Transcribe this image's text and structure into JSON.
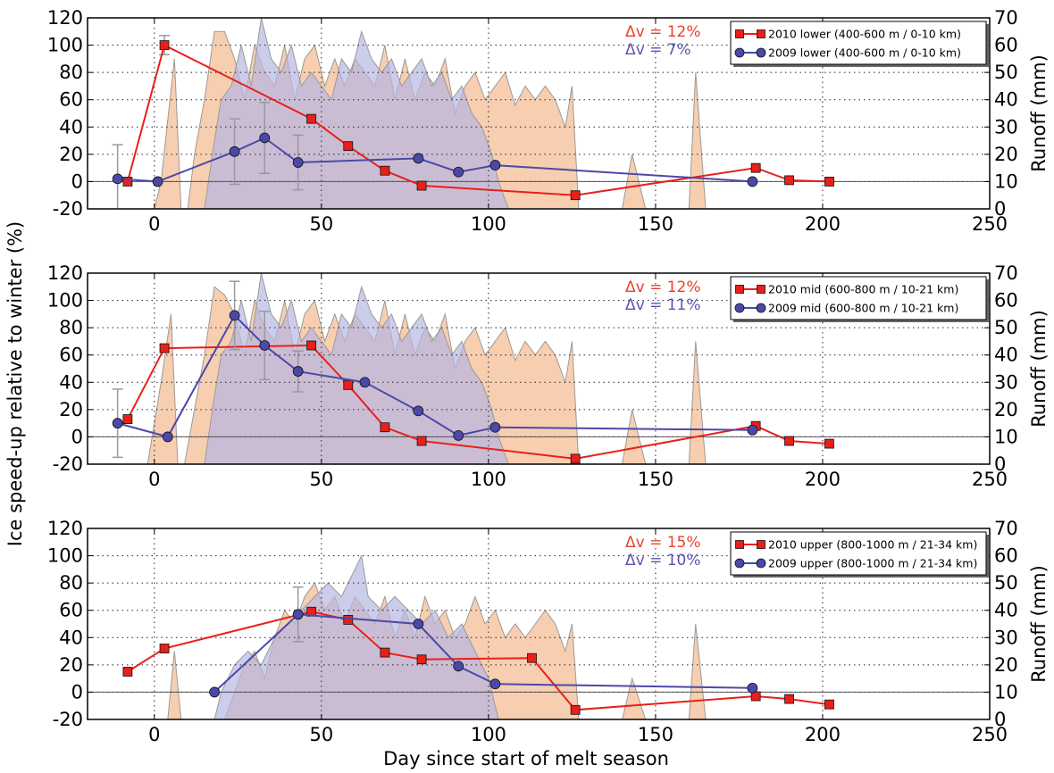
{
  "figure": {
    "xlabel": "Day since start of melt season",
    "ylabel": "Ice speed-up relative to winter (%)",
    "ylabel_right": "Runoff (mm)"
  },
  "colors": {
    "series_2010": "#e8201a",
    "series_2009": "#4b49a8",
    "runoff_2010": "#f4b98f",
    "runoff_2009": "#b7b6e3",
    "dv_2010": "#e8412e",
    "dv_2009": "#5b55b0"
  },
  "chart_data": [
    {
      "type": "line",
      "panel": "lower",
      "xlim": [
        -20,
        250
      ],
      "ylim": [
        -20,
        120
      ],
      "y2lim": [
        0,
        70
      ],
      "xticks": [
        0,
        50,
        100,
        150,
        200,
        250
      ],
      "yticks": [
        -20,
        0,
        20,
        40,
        60,
        80,
        100,
        120
      ],
      "y2ticks": [
        0,
        10,
        20,
        30,
        40,
        50,
        60,
        70
      ],
      "grid": true,
      "legend_position": "top-right",
      "annotations": [
        {
          "text": "Δv = 12%",
          "series": "2010"
        },
        {
          "text": "Δv = 7%",
          "series": "2009"
        }
      ],
      "series": [
        {
          "name": "2010 lower (400-600 m / 0-10 km)",
          "marker": "square",
          "x": [
            -8,
            3,
            47,
            58,
            69,
            80,
            126,
            180,
            190,
            202
          ],
          "y": [
            0,
            100,
            46,
            26,
            8,
            -3,
            -10,
            10,
            1,
            0
          ],
          "err": [
            null,
            7,
            null,
            null,
            null,
            null,
            null,
            null,
            null,
            null
          ]
        },
        {
          "name": "2009 lower (400-600 m / 0-10 km)",
          "marker": "circle",
          "x": [
            -11,
            1,
            24,
            33,
            43,
            79,
            91,
            102,
            179
          ],
          "y": [
            2,
            0,
            22,
            32,
            14,
            17,
            7,
            12,
            0
          ],
          "err": [
            25,
            null,
            24,
            26,
            20,
            null,
            null,
            null,
            null
          ]
        }
      ],
      "runoff": [
        {
          "series": "2010",
          "x": [
            0,
            2,
            6,
            8,
            10,
            12,
            15,
            18,
            21,
            24,
            27,
            30,
            33,
            36,
            39,
            42,
            45,
            48,
            51,
            54,
            57,
            60,
            63,
            66,
            69,
            72,
            75,
            78,
            81,
            84,
            87,
            90,
            93,
            96,
            99,
            102,
            105,
            108,
            111,
            114,
            117,
            120,
            123,
            125,
            127,
            130,
            140,
            143,
            147,
            152,
            160,
            162,
            165,
            170
          ],
          "y": [
            0,
            10,
            55,
            0,
            0,
            20,
            40,
            65,
            65,
            55,
            40,
            60,
            50,
            45,
            60,
            40,
            55,
            60,
            45,
            55,
            45,
            55,
            50,
            45,
            60,
            40,
            55,
            40,
            50,
            45,
            55,
            35,
            45,
            50,
            40,
            45,
            50,
            38,
            45,
            40,
            45,
            40,
            30,
            45,
            0,
            0,
            0,
            20,
            0,
            0,
            0,
            50,
            0,
            0
          ]
        },
        {
          "series": "2009",
          "x": [
            15,
            18,
            20,
            23,
            26,
            29,
            32,
            35,
            38,
            41,
            44,
            47,
            50,
            53,
            56,
            59,
            62,
            65,
            68,
            71,
            74,
            77,
            80,
            83,
            86,
            89,
            92,
            95,
            98,
            101,
            103,
            106
          ],
          "y": [
            0,
            25,
            40,
            45,
            60,
            45,
            70,
            55,
            50,
            60,
            45,
            50,
            45,
            40,
            55,
            50,
            65,
            55,
            50,
            55,
            45,
            50,
            55,
            45,
            50,
            40,
            45,
            35,
            30,
            20,
            10,
            0
          ]
        }
      ]
    },
    {
      "type": "line",
      "panel": "mid",
      "xlim": [
        -20,
        250
      ],
      "ylim": [
        -20,
        120
      ],
      "y2lim": [
        0,
        70
      ],
      "xticks": [
        0,
        50,
        100,
        150,
        200,
        250
      ],
      "yticks": [
        -20,
        0,
        20,
        40,
        60,
        80,
        100,
        120
      ],
      "y2ticks": [
        0,
        10,
        20,
        30,
        40,
        50,
        60,
        70
      ],
      "grid": true,
      "legend_position": "top-right",
      "annotations": [
        {
          "text": "Δv = 12%",
          "series": "2010"
        },
        {
          "text": "Δv = 11%",
          "series": "2009"
        }
      ],
      "series": [
        {
          "name": "2010 mid (600-800 m / 10-21 km)",
          "marker": "square",
          "x": [
            -8,
            3,
            47,
            58,
            69,
            80,
            126,
            180,
            190,
            202
          ],
          "y": [
            13,
            65,
            67,
            38,
            7,
            -3,
            -16,
            8,
            -3,
            -5
          ],
          "err": [
            null,
            null,
            null,
            null,
            null,
            null,
            null,
            null,
            null,
            null
          ]
        },
        {
          "name": "2009 mid (600-800 m / 10-21 km)",
          "marker": "circle",
          "x": [
            -11,
            4,
            24,
            33,
            43,
            63,
            79,
            91,
            102,
            179
          ],
          "y": [
            10,
            0,
            89,
            67,
            48,
            40,
            19,
            1,
            7,
            5
          ],
          "err": [
            25,
            null,
            25,
            25,
            15,
            null,
            null,
            null,
            null,
            null
          ]
        }
      ],
      "runoff": [
        {
          "series": "2010",
          "x": [
            -2,
            2,
            5,
            7,
            9,
            12,
            15,
            18,
            21,
            24,
            27,
            30,
            33,
            36,
            39,
            42,
            45,
            48,
            51,
            54,
            57,
            60,
            63,
            66,
            69,
            72,
            75,
            78,
            81,
            84,
            87,
            90,
            93,
            96,
            99,
            102,
            105,
            108,
            111,
            114,
            117,
            120,
            123,
            125,
            127,
            130,
            140,
            143,
            147,
            152,
            160,
            162,
            165,
            170
          ],
          "y": [
            0,
            30,
            55,
            0,
            0,
            20,
            40,
            65,
            62,
            55,
            40,
            60,
            50,
            45,
            60,
            40,
            55,
            60,
            45,
            55,
            45,
            55,
            50,
            45,
            60,
            40,
            55,
            40,
            50,
            45,
            55,
            35,
            45,
            50,
            40,
            45,
            50,
            38,
            45,
            40,
            45,
            40,
            30,
            45,
            0,
            0,
            0,
            20,
            0,
            0,
            0,
            45,
            0,
            0
          ]
        },
        {
          "series": "2009",
          "x": [
            15,
            18,
            20,
            23,
            26,
            29,
            32,
            35,
            38,
            41,
            44,
            47,
            50,
            53,
            56,
            59,
            62,
            65,
            68,
            71,
            74,
            77,
            80,
            83,
            86,
            89,
            92,
            95,
            98,
            101,
            103,
            106
          ],
          "y": [
            0,
            25,
            40,
            45,
            60,
            45,
            70,
            55,
            50,
            60,
            45,
            50,
            45,
            40,
            55,
            50,
            65,
            55,
            50,
            55,
            45,
            50,
            55,
            45,
            50,
            40,
            45,
            35,
            30,
            20,
            10,
            0
          ]
        }
      ]
    },
    {
      "type": "line",
      "panel": "upper",
      "xlim": [
        -20,
        250
      ],
      "ylim": [
        -20,
        120
      ],
      "y2lim": [
        0,
        70
      ],
      "xticks": [
        0,
        50,
        100,
        150,
        200,
        250
      ],
      "yticks": [
        -20,
        0,
        20,
        40,
        60,
        80,
        100,
        120
      ],
      "y2ticks": [
        0,
        10,
        20,
        30,
        40,
        50,
        60,
        70
      ],
      "grid": true,
      "legend_position": "top-right",
      "annotations": [
        {
          "text": "Δv = 15%",
          "series": "2010"
        },
        {
          "text": "Δv = 10%",
          "series": "2009"
        }
      ],
      "series": [
        {
          "name": "2010 upper (800-1000 m / 21-34 km)",
          "marker": "square",
          "x": [
            -8,
            3,
            47,
            58,
            69,
            80,
            113,
            126,
            180,
            190,
            202
          ],
          "y": [
            15,
            32,
            59,
            53,
            29,
            24,
            25,
            -13,
            -3,
            -5,
            -9
          ],
          "err": [
            null,
            null,
            null,
            null,
            null,
            null,
            null,
            null,
            null,
            null,
            null
          ]
        },
        {
          "name": "2009 upper (800-1000 m / 21-34 km)",
          "marker": "circle",
          "x": [
            18,
            43,
            79,
            91,
            102,
            179
          ],
          "y": [
            0,
            57,
            50,
            19,
            6,
            3
          ],
          "err": [
            null,
            20,
            null,
            null,
            null,
            null
          ]
        }
      ],
      "runoff": [
        {
          "series": "2010",
          "x": [
            4,
            6,
            8,
            12,
            15,
            18,
            21,
            24,
            27,
            30,
            33,
            36,
            39,
            42,
            45,
            48,
            51,
            54,
            57,
            60,
            63,
            66,
            69,
            72,
            75,
            78,
            81,
            84,
            87,
            90,
            93,
            96,
            99,
            102,
            105,
            108,
            111,
            114,
            117,
            120,
            123,
            125,
            127,
            130,
            140,
            143,
            147,
            152,
            160,
            162,
            165,
            170
          ],
          "y": [
            0,
            25,
            0,
            0,
            0,
            0,
            0,
            10,
            20,
            25,
            15,
            30,
            40,
            35,
            45,
            50,
            40,
            45,
            35,
            45,
            40,
            35,
            45,
            30,
            40,
            30,
            45,
            35,
            40,
            30,
            35,
            45,
            35,
            40,
            30,
            35,
            30,
            35,
            40,
            35,
            25,
            35,
            0,
            0,
            0,
            15,
            0,
            0,
            0,
            35,
            0,
            0
          ]
        },
        {
          "series": "2009",
          "x": [
            18,
            20,
            24,
            28,
            32,
            36,
            40,
            44,
            48,
            52,
            56,
            60,
            62,
            64,
            68,
            72,
            76,
            80,
            84,
            88,
            92,
            96,
            100,
            103
          ],
          "y": [
            0,
            10,
            20,
            25,
            20,
            30,
            35,
            40,
            45,
            50,
            45,
            55,
            60,
            45,
            40,
            45,
            40,
            35,
            40,
            30,
            35,
            25,
            15,
            0
          ]
        }
      ]
    }
  ]
}
